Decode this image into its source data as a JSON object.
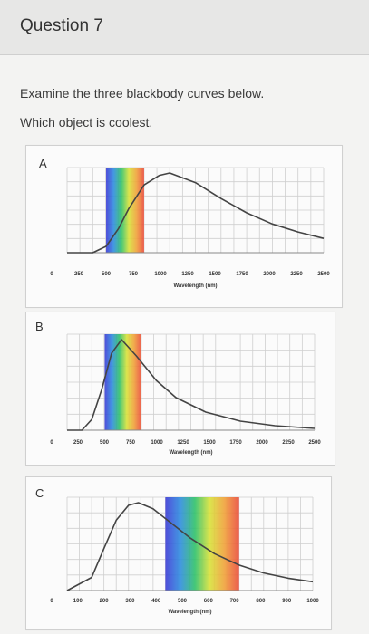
{
  "header": {
    "title": "Question 7"
  },
  "prompt": {
    "line1": "Examine the three blackbody curves below.",
    "line2": "Which object is coolest."
  },
  "panels": [
    {
      "label": "A",
      "chart_data": {
        "type": "line",
        "xlabel": "Wavelength (nm)",
        "xlim": [
          0,
          2500
        ],
        "x_ticks": [
          "0",
          "250",
          "500",
          "750",
          "1000",
          "1250",
          "1500",
          "1750",
          "2000",
          "2250",
          "2500"
        ],
        "spectrum_band_nm": [
          380,
          750
        ],
        "peak_nm": 1000,
        "x": [
          0,
          250,
          380,
          500,
          600,
          750,
          900,
          1000,
          1250,
          1500,
          1750,
          2000,
          2250,
          2500
        ],
        "y": [
          0,
          0.0,
          0.08,
          0.3,
          0.55,
          0.85,
          0.97,
          1.0,
          0.88,
          0.68,
          0.5,
          0.36,
          0.26,
          0.18
        ]
      }
    },
    {
      "label": "B",
      "chart_data": {
        "type": "line",
        "xlabel": "Wavelength (nm)",
        "xlim": [
          0,
          2500
        ],
        "x_ticks": [
          "0",
          "250",
          "500",
          "750",
          "1000",
          "1250",
          "1500",
          "1750",
          "2000",
          "2250",
          "2500"
        ],
        "spectrum_band_nm": [
          380,
          750
        ],
        "peak_nm": 550,
        "x": [
          0,
          150,
          250,
          350,
          450,
          550,
          700,
          900,
          1100,
          1400,
          1750,
          2100,
          2500
        ],
        "y": [
          0,
          0.0,
          0.12,
          0.45,
          0.85,
          1.0,
          0.82,
          0.55,
          0.36,
          0.2,
          0.1,
          0.05,
          0.02
        ]
      }
    },
    {
      "label": "C",
      "chart_data": {
        "type": "line",
        "xlabel": "Wavelength (nm)",
        "xlim": [
          0,
          1000
        ],
        "x_ticks": [
          "0",
          "100",
          "200",
          "300",
          "400",
          "500",
          "600",
          "700",
          "800",
          "900",
          "1000"
        ],
        "spectrum_band_nm": [
          400,
          700
        ],
        "peak_nm": 290,
        "x": [
          0,
          100,
          150,
          200,
          250,
          290,
          350,
          400,
          500,
          600,
          700,
          800,
          900,
          1000
        ],
        "y": [
          0,
          0.15,
          0.48,
          0.8,
          0.97,
          1.0,
          0.93,
          0.82,
          0.6,
          0.42,
          0.29,
          0.2,
          0.14,
          0.1
        ]
      }
    }
  ]
}
